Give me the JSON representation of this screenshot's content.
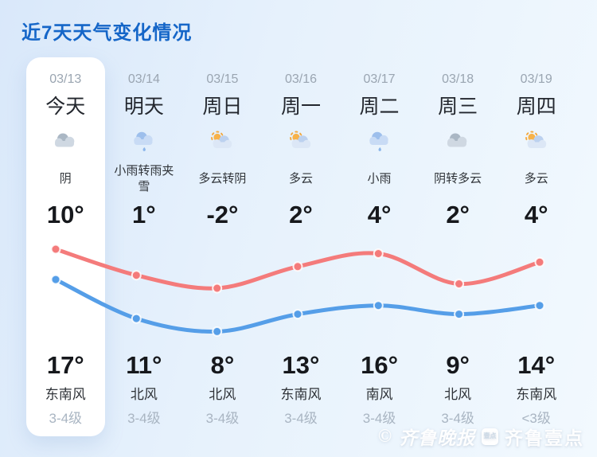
{
  "title": "近7天天气变化情况",
  "colors": {
    "title_blue": "#1566c8",
    "high_line_red": "#f47b7b",
    "low_line_blue": "#559ee8",
    "card_white": "#ffffff",
    "background_blue": "#e3f0fb",
    "muted_gray": "#9aa5b1"
  },
  "days": [
    {
      "date": "03/13",
      "day": "今天",
      "condition": "阴",
      "icon": "cloud",
      "low": "10°",
      "high": "17°",
      "wind": "东南风",
      "level": "3-4级",
      "today": true
    },
    {
      "date": "03/14",
      "day": "明天",
      "condition": "小雨转雨夹雪",
      "icon": "rain",
      "low": "1°",
      "high": "11°",
      "wind": "北风",
      "level": "3-4级",
      "today": false
    },
    {
      "date": "03/15",
      "day": "周日",
      "condition": "多云转阴",
      "icon": "sun-cloud",
      "low": "-2°",
      "high": "8°",
      "wind": "北风",
      "level": "3-4级",
      "today": false
    },
    {
      "date": "03/16",
      "day": "周一",
      "condition": "多云",
      "icon": "sun-cloud",
      "low": "2°",
      "high": "13°",
      "wind": "东南风",
      "level": "3-4级",
      "today": false
    },
    {
      "date": "03/17",
      "day": "周二",
      "condition": "小雨",
      "icon": "rain",
      "low": "4°",
      "high": "16°",
      "wind": "南风",
      "level": "3-4级",
      "today": false
    },
    {
      "date": "03/18",
      "day": "周三",
      "condition": "阴转多云",
      "icon": "cloud",
      "low": "2°",
      "high": "9°",
      "wind": "北风",
      "level": "3-4级",
      "today": false
    },
    {
      "date": "03/19",
      "day": "周四",
      "condition": "多云",
      "icon": "sun-cloud",
      "low": "4°",
      "high": "14°",
      "wind": "东南风",
      "level": "<3级",
      "today": false
    }
  ],
  "chart_data": {
    "type": "line",
    "title": "近7天天气变化情况",
    "categories": [
      "03/13",
      "03/14",
      "03/15",
      "03/16",
      "03/17",
      "03/18",
      "03/19"
    ],
    "series": [
      {
        "name": "high",
        "color": "#f47b7b",
        "values": [
          17,
          11,
          8,
          13,
          16,
          9,
          14
        ]
      },
      {
        "name": "low",
        "color": "#559ee8",
        "values": [
          10,
          1,
          -2,
          2,
          4,
          2,
          4
        ]
      }
    ],
    "ylim": [
      -2,
      17
    ],
    "grid": false,
    "legend": "none",
    "unit": "°C"
  },
  "watermark": {
    "copyright": "©",
    "brand_script": "齐鲁晚报",
    "badge": "壹点",
    "brand_text": "齐鲁壹点"
  }
}
